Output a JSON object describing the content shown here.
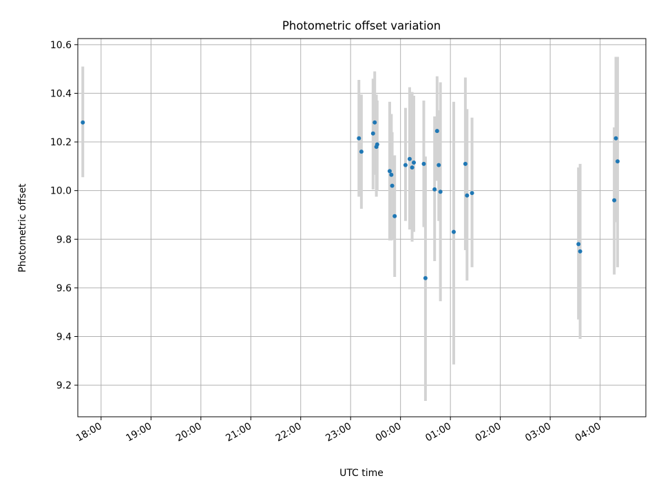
{
  "chart_data": {
    "type": "scatter",
    "title": "Photometric offset variation",
    "xlabel": "UTC time",
    "ylabel": "Photometric offset",
    "x_ticks": [
      "18:00",
      "19:00",
      "20:00",
      "21:00",
      "22:00",
      "23:00",
      "00:00",
      "01:00",
      "02:00",
      "03:00",
      "04:00"
    ],
    "y_ticks": [
      "9.2",
      "9.4",
      "9.6",
      "9.8",
      "10.0",
      "10.2",
      "10.4",
      "10.6"
    ],
    "x_range": [
      "17:32",
      "04:55"
    ],
    "ylim": [
      9.07,
      10.625
    ],
    "grid": true,
    "colors": {
      "point": "#1f77b4",
      "errorbar": "#d3d3d3"
    },
    "series": [
      {
        "points": [
          {
            "t": "17:38",
            "y": 10.28,
            "lo": 10.055,
            "hi": 10.51
          },
          {
            "t": "23:10",
            "y": 10.215,
            "lo": 9.975,
            "hi": 10.455
          },
          {
            "t": "23:13",
            "y": 10.16,
            "lo": 9.925,
            "hi": 10.395
          },
          {
            "t": "23:27",
            "y": 10.235,
            "lo": 10.005,
            "hi": 10.46
          },
          {
            "t": "23:29",
            "y": 10.28,
            "lo": 10.065,
            "hi": 10.49
          },
          {
            "t": "23:31",
            "y": 10.18,
            "lo": 9.975,
            "hi": 10.395
          },
          {
            "t": "23:32",
            "y": 10.19,
            "lo": 10.0,
            "hi": 10.37
          },
          {
            "t": "23:47",
            "y": 10.08,
            "lo": 9.795,
            "hi": 10.365
          },
          {
            "t": "23:49",
            "y": 10.065,
            "lo": 9.795,
            "hi": 10.315
          },
          {
            "t": "23:50",
            "y": 10.02,
            "lo": 9.8,
            "hi": 10.24
          },
          {
            "t": "23:53",
            "y": 9.895,
            "lo": 9.645,
            "hi": 10.145
          },
          {
            "t": "00:06",
            "y": 10.105,
            "lo": 9.875,
            "hi": 10.34
          },
          {
            "t": "00:11",
            "y": 10.13,
            "lo": 9.84,
            "hi": 10.425
          },
          {
            "t": "00:14",
            "y": 10.095,
            "lo": 9.79,
            "hi": 10.405
          },
          {
            "t": "00:16",
            "y": 10.115,
            "lo": 9.83,
            "hi": 10.39
          },
          {
            "t": "00:28",
            "y": 10.11,
            "lo": 9.85,
            "hi": 10.37
          },
          {
            "t": "00:30",
            "y": 9.64,
            "lo": 9.135,
            "hi": 10.14
          },
          {
            "t": "00:41",
            "y": 10.005,
            "lo": 9.71,
            "hi": 10.305
          },
          {
            "t": "00:44",
            "y": 10.245,
            "lo": 10.04,
            "hi": 10.47
          },
          {
            "t": "00:46",
            "y": 10.105,
            "lo": 9.875,
            "hi": 10.33
          },
          {
            "t": "00:48",
            "y": 9.995,
            "lo": 9.545,
            "hi": 10.445
          },
          {
            "t": "01:04",
            "y": 9.83,
            "lo": 9.285,
            "hi": 10.365
          },
          {
            "t": "01:18",
            "y": 10.11,
            "lo": 9.755,
            "hi": 10.465
          },
          {
            "t": "01:20",
            "y": 9.98,
            "lo": 9.63,
            "hi": 10.335
          },
          {
            "t": "01:26",
            "y": 9.99,
            "lo": 9.685,
            "hi": 10.3
          },
          {
            "t": "03:34",
            "y": 9.78,
            "lo": 9.47,
            "hi": 10.095
          },
          {
            "t": "03:36",
            "y": 9.75,
            "lo": 9.39,
            "hi": 10.11
          },
          {
            "t": "04:17",
            "y": 9.96,
            "lo": 9.655,
            "hi": 10.26
          },
          {
            "t": "04:19",
            "y": 10.215,
            "lo": 9.87,
            "hi": 10.55
          },
          {
            "t": "04:21",
            "y": 10.12,
            "lo": 9.685,
            "hi": 10.55
          }
        ]
      }
    ]
  }
}
